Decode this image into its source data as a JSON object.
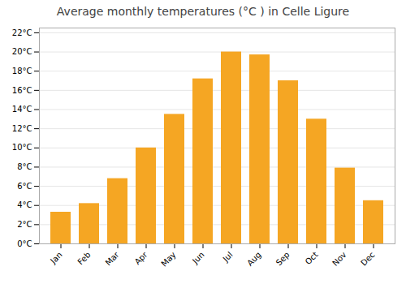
{
  "chart_data": {
    "type": "bar",
    "title": "Average monthly temperatures (°C ) in Celle Ligure",
    "categories": [
      "Jan",
      "Feb",
      "Mar",
      "Apr",
      "May",
      "Jun",
      "Jul",
      "Aug",
      "Sep",
      "Oct",
      "Nov",
      "Dec"
    ],
    "values": [
      3.3,
      4.2,
      6.8,
      10.0,
      13.5,
      17.2,
      20.0,
      19.7,
      17.0,
      13.0,
      7.9,
      4.5
    ],
    "color": "#F5A623",
    "ylim": [
      0,
      22.5
    ],
    "yticks": [
      {
        "value": 0,
        "label": "0°C"
      },
      {
        "value": 2,
        "label": "2°C"
      },
      {
        "value": 4,
        "label": "4°C"
      },
      {
        "value": 6,
        "label": "6°C"
      },
      {
        "value": 8,
        "label": "8°C"
      },
      {
        "value": 10,
        "label": "10°C"
      },
      {
        "value": 12,
        "label": "12°C"
      },
      {
        "value": 14,
        "label": "14°C"
      },
      {
        "value": 16,
        "label": "16°C"
      },
      {
        "value": 18,
        "label": "18°C"
      },
      {
        "value": 20,
        "label": "20°C"
      },
      {
        "value": 22,
        "label": "22°C"
      }
    ],
    "grid": true
  }
}
